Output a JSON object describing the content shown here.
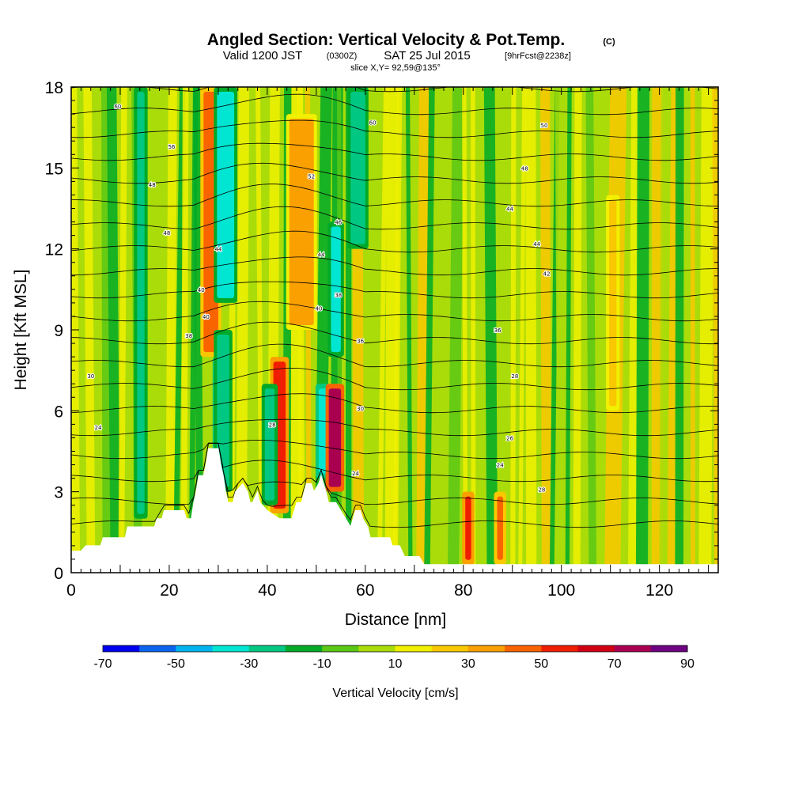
{
  "chart_data": {
    "type": "heatmap",
    "title": "Angled Section: Vertical Velocity & Pot.Temp.",
    "title_units": "(C)",
    "subtitle": {
      "main_a": "Valid 1200 JST",
      "zulu": "(0300Z)",
      "main_b": "SAT 25 Jul 2015",
      "fcst": "[9hrFcst@2238z]",
      "slice": "slice X,Y= 92,59@135°"
    },
    "xlabel": "Distance [nm]",
    "ylabel": "Height [Kft MSL]",
    "xlim": [
      0,
      132
    ],
    "ylim": [
      0,
      18
    ],
    "x_ticks": [
      0,
      20,
      40,
      60,
      80,
      100,
      120
    ],
    "y_ticks": [
      0,
      3,
      6,
      9,
      12,
      15,
      18
    ],
    "colorbar": {
      "label": "Vertical Velocity [cm/s]",
      "levels": [
        -70,
        -60,
        -50,
        -40,
        -30,
        -20,
        -10,
        0,
        10,
        20,
        30,
        40,
        50,
        60,
        70,
        80,
        90
      ],
      "tick_labels": [
        "-70",
        "-50",
        "-30",
        "-10",
        "10",
        "30",
        "50",
        "70",
        "90"
      ],
      "colors": [
        "#0000f0",
        "#0a64f0",
        "#00b4f0",
        "#00e6d2",
        "#00c882",
        "#00aa28",
        "#5ac814",
        "#aadc0a",
        "#f0f000",
        "#fac800",
        "#faa000",
        "#fa6400",
        "#f01e00",
        "#d20014",
        "#aa0050",
        "#6e0082"
      ]
    },
    "terrain": [
      [
        0,
        0.8
      ],
      [
        2,
        0.8
      ],
      [
        3,
        1.0
      ],
      [
        6,
        1.0
      ],
      [
        6.5,
        1.3
      ],
      [
        11,
        1.3
      ],
      [
        11.5,
        1.7
      ],
      [
        17,
        1.7
      ],
      [
        17.5,
        2.0
      ],
      [
        18.5,
        2.0
      ],
      [
        19,
        2.3
      ],
      [
        23,
        2.3
      ],
      [
        23.5,
        2.0
      ],
      [
        24.5,
        2.0
      ],
      [
        25,
        2.6
      ],
      [
        25.5,
        3.0
      ],
      [
        26,
        3.6
      ],
      [
        27,
        3.6
      ],
      [
        27.5,
        4.0
      ],
      [
        28,
        4.6
      ],
      [
        30,
        4.6
      ],
      [
        30.5,
        4.0
      ],
      [
        31,
        3.6
      ],
      [
        31.5,
        3.0
      ],
      [
        32,
        2.6
      ],
      [
        33,
        2.6
      ],
      [
        33.5,
        3.0
      ],
      [
        35,
        3.3
      ],
      [
        36,
        3.0
      ],
      [
        36.5,
        2.6
      ],
      [
        37,
        2.6
      ],
      [
        38,
        3.0
      ],
      [
        38.5,
        2.6
      ],
      [
        40,
        2.3
      ],
      [
        42.5,
        2.0
      ],
      [
        45,
        2.0
      ],
      [
        45.5,
        2.3
      ],
      [
        46,
        2.6
      ],
      [
        47,
        2.6
      ],
      [
        47.5,
        3.0
      ],
      [
        48,
        3.3
      ],
      [
        49,
        3.3
      ],
      [
        49.5,
        3.0
      ],
      [
        50.5,
        3.3
      ],
      [
        51,
        3.6
      ],
      [
        52,
        3.0
      ],
      [
        52.5,
        2.6
      ],
      [
        54,
        2.6
      ],
      [
        55,
        2.3
      ],
      [
        56,
        2.0
      ],
      [
        57,
        1.7
      ],
      [
        57.5,
        2.0
      ],
      [
        58,
        2.3
      ],
      [
        59,
        2.3
      ],
      [
        59.5,
        2.0
      ],
      [
        60.5,
        1.7
      ],
      [
        61,
        1.3
      ],
      [
        65,
        1.3
      ],
      [
        65.5,
        1.0
      ],
      [
        67,
        1.0
      ],
      [
        68,
        0.6
      ],
      [
        71,
        0.6
      ],
      [
        72,
        0.3
      ],
      [
        132,
        0.3
      ]
    ],
    "velocity_columns": [
      {
        "x": 14.2,
        "width": 1.5,
        "z": [
          2,
          18
        ],
        "value": -30
      },
      {
        "x": 28.5,
        "width": 3.0,
        "z": [
          8,
          18
        ],
        "value": 45
      },
      {
        "x": 31.5,
        "width": 3.5,
        "z": [
          10,
          18
        ],
        "value": -35
      },
      {
        "x": 30.5,
        "width": 2.0,
        "z": [
          4,
          8
        ],
        "value": -50
      },
      {
        "x": 31.0,
        "width": 2.5,
        "z": [
          3,
          9
        ],
        "value": -30
      },
      {
        "x": 42.5,
        "width": 2.5,
        "z": [
          2.2,
          8
        ],
        "value": 55
      },
      {
        "x": 40.5,
        "width": 2.0,
        "z": [
          2.5,
          7
        ],
        "value": -30
      },
      {
        "x": 47,
        "width": 5.0,
        "z": [
          9,
          17
        ],
        "value": 35
      },
      {
        "x": 51.5,
        "width": 2.0,
        "z": [
          3.5,
          7
        ],
        "value": -40
      },
      {
        "x": 53.8,
        "width": 2.5,
        "z": [
          3,
          7
        ],
        "value": 75
      },
      {
        "x": 54.0,
        "width": 2.0,
        "z": [
          8,
          13
        ],
        "value": -35
      },
      {
        "x": 58.5,
        "width": 3.0,
        "z": [
          12,
          18
        ],
        "value": -30
      },
      {
        "x": 81,
        "width": 1.2,
        "z": [
          0.3,
          3
        ],
        "value": 55
      },
      {
        "x": 87.5,
        "width": 1.2,
        "z": [
          0.3,
          3
        ],
        "value": 45
      },
      {
        "x": 110.5,
        "width": 1.5,
        "z": [
          6,
          14
        ],
        "value": 20
      }
    ],
    "theta_levels": [
      24,
      26,
      28,
      30,
      32,
      34,
      36,
      38,
      40,
      42,
      44,
      46,
      48,
      50,
      52,
      54,
      56,
      58,
      60,
      62
    ],
    "theta_labels": [
      {
        "text": "60",
        "x": 9.5,
        "z": 17.3
      },
      {
        "text": "60",
        "x": 61.5,
        "z": 16.7
      },
      {
        "text": "50",
        "x": 96.5,
        "z": 16.6
      },
      {
        "text": "56",
        "x": 20.5,
        "z": 15.8
      },
      {
        "text": "48",
        "x": 92.5,
        "z": 15.0
      },
      {
        "text": "48",
        "x": 16.5,
        "z": 14.4
      },
      {
        "text": "52",
        "x": 49,
        "z": 14.7
      },
      {
        "text": "44",
        "x": 89.5,
        "z": 13.5
      },
      {
        "text": "48",
        "x": 19.5,
        "z": 12.6
      },
      {
        "text": "46",
        "x": 54.5,
        "z": 13.0
      },
      {
        "text": "44",
        "x": 30,
        "z": 12.0
      },
      {
        "text": "44",
        "x": 51,
        "z": 11.8
      },
      {
        "text": "44",
        "x": 95,
        "z": 12.2
      },
      {
        "text": "42",
        "x": 97,
        "z": 11.1
      },
      {
        "text": "40",
        "x": 26.5,
        "z": 10.5
      },
      {
        "text": "40",
        "x": 50.5,
        "z": 9.8
      },
      {
        "text": "38",
        "x": 54.5,
        "z": 10.3
      },
      {
        "text": "40",
        "x": 27.5,
        "z": 9.5
      },
      {
        "text": "36",
        "x": 87,
        "z": 9.0
      },
      {
        "text": "38",
        "x": 24,
        "z": 8.8
      },
      {
        "text": "36",
        "x": 59,
        "z": 8.6
      },
      {
        "text": "30",
        "x": 4,
        "z": 7.3
      },
      {
        "text": "28",
        "x": 90.5,
        "z": 7.3
      },
      {
        "text": "30",
        "x": 59,
        "z": 6.1
      },
      {
        "text": "28",
        "x": 41,
        "z": 5.5
      },
      {
        "text": "24",
        "x": 5.5,
        "z": 5.4
      },
      {
        "text": "26",
        "x": 89.5,
        "z": 5.0
      },
      {
        "text": "24",
        "x": 87.5,
        "z": 4.0
      },
      {
        "text": "24",
        "x": 58,
        "z": 3.7
      },
      {
        "text": "28",
        "x": 96,
        "z": 3.1
      }
    ]
  }
}
